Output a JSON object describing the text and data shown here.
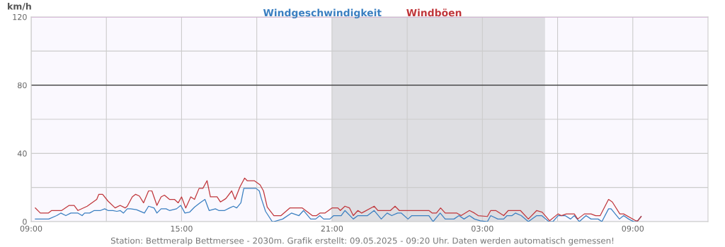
{
  "chart_data": {
    "type": "line",
    "ylabel": "km/h",
    "xlim": [
      "2025-05-08T09:00",
      "2025-05-09T12:00"
    ],
    "xticks": [
      {
        "value": "2025-05-08T09:00",
        "label": "09:00"
      },
      {
        "value": "2025-05-08T12:00",
        "label": null
      },
      {
        "value": "2025-05-08T15:00",
        "label": "15:00"
      },
      {
        "value": "2025-05-08T18:00",
        "label": null
      },
      {
        "value": "2025-05-08T21:00",
        "label": "21:00"
      },
      {
        "value": "2025-05-09T00:00",
        "label": null
      },
      {
        "value": "2025-05-09T03:00",
        "label": "03:00"
      },
      {
        "value": "2025-05-09T06:00",
        "label": null
      },
      {
        "value": "2025-05-09T09:00",
        "label": "09:00"
      }
    ],
    "ylim": [
      0,
      120
    ],
    "yticks": [
      0,
      {
        "value": 20,
        "label": null
      },
      40,
      {
        "value": 60,
        "label": null
      },
      80,
      {
        "value": 100,
        "label": null
      },
      120
    ],
    "grid": true,
    "legend": "top",
    "marker": "none",
    "line_style": "solid",
    "ref_lines": [
      {
        "axis": "y",
        "value": 80,
        "label": null,
        "color": "#333333"
      },
      {
        "axis": "y",
        "value": 120,
        "label": null,
        "color": "#e070e0"
      }
    ],
    "bands": [
      {
        "axis": "x",
        "from": "2025-05-08T21:00",
        "to": "2025-05-09T05:30",
        "label": null,
        "color": "#dedee2"
      }
    ],
    "series": [
      {
        "name": "Windgeschwindigkeit",
        "color": "#3a7fc1",
        "x": [
          "2025-05-08T09:10",
          "2025-05-08T09:42",
          "2025-05-08T10:01",
          "2025-05-08T10:11",
          "2025-05-08T10:23",
          "2025-05-08T10:35",
          "2025-05-08T10:52",
          "2025-05-08T11:02",
          "2025-05-08T11:08",
          "2025-05-08T11:20",
          "2025-05-08T11:31",
          "2025-05-08T11:46",
          "2025-05-08T11:56",
          "2025-05-08T12:04",
          "2025-05-08T12:16",
          "2025-05-08T12:25",
          "2025-05-08T12:33",
          "2025-05-08T12:41",
          "2025-05-08T12:50",
          "2025-05-08T12:58",
          "2025-05-08T13:12",
          "2025-05-08T13:31",
          "2025-05-08T13:41",
          "2025-05-08T13:54",
          "2025-05-08T14:01",
          "2025-05-08T14:11",
          "2025-05-08T14:23",
          "2025-05-08T14:31",
          "2025-05-08T14:48",
          "2025-05-08T14:58",
          "2025-05-08T15:08",
          "2025-05-08T15:19",
          "2025-05-08T15:31",
          "2025-05-08T15:44",
          "2025-05-08T15:56",
          "2025-05-08T16:06",
          "2025-05-08T16:21",
          "2025-05-08T16:29",
          "2025-05-08T16:43",
          "2025-05-08T16:55",
          "2025-05-08T17:04",
          "2025-05-08T17:12",
          "2025-05-08T17:22",
          "2025-05-08T17:29",
          "2025-05-08T17:58",
          "2025-05-08T18:06",
          "2025-05-08T18:11",
          "2025-05-08T18:21",
          "2025-05-08T18:37",
          "2025-05-08T18:41",
          "2025-05-08T19:02",
          "2025-05-08T19:23",
          "2025-05-08T19:41",
          "2025-05-08T19:52",
          "2025-05-08T20:09",
          "2025-05-08T20:21",
          "2025-05-08T20:31",
          "2025-05-08T20:40",
          "2025-05-08T20:55",
          "2025-05-08T21:04",
          "2025-05-08T21:22",
          "2025-05-08T21:31",
          "2025-05-08T21:51",
          "2025-05-08T22:02",
          "2025-05-08T22:25",
          "2025-05-08T22:41",
          "2025-05-08T22:58",
          "2025-05-08T23:12",
          "2025-05-08T23:23",
          "2025-05-08T23:37",
          "2025-05-08T23:46",
          "2025-05-09T00:02",
          "2025-05-09T00:11",
          "2025-05-09T00:52",
          "2025-05-09T01:02",
          "2025-05-09T01:19",
          "2025-05-09T01:31",
          "2025-05-09T01:52",
          "2025-05-09T02:04",
          "2025-05-09T02:16",
          "2025-05-09T02:29",
          "2025-05-09T02:41",
          "2025-05-09T02:55",
          "2025-05-09T03:12",
          "2025-05-09T03:20",
          "2025-05-09T03:37",
          "2025-05-09T03:51",
          "2025-05-09T03:59",
          "2025-05-09T04:11",
          "2025-05-09T04:19",
          "2025-05-09T04:33",
          "2025-05-09T04:50",
          "2025-05-09T05:10",
          "2025-05-09T05:22",
          "2025-05-09T05:39",
          "2025-05-09T05:49",
          "2025-05-09T06:01",
          "2025-05-09T06:18",
          "2025-05-09T06:31",
          "2025-05-09T06:40",
          "2025-05-09T06:52",
          "2025-05-09T07:08",
          "2025-05-09T07:20",
          "2025-05-09T07:37",
          "2025-05-09T07:46",
          "2025-05-09T08:02",
          "2025-05-09T08:08",
          "2025-05-09T08:28",
          "2025-05-09T08:38",
          "2025-05-09T08:50",
          "2025-05-09T09:02",
          "2025-05-09T09:10",
          "2025-05-09T09:20"
        ],
        "values": [
          1.5,
          1.5,
          3.5,
          5,
          3.5,
          5,
          5,
          3.5,
          5,
          5,
          6.5,
          6.5,
          7.5,
          6.5,
          6.5,
          6,
          6.5,
          5,
          7.5,
          7.5,
          7,
          5,
          9,
          8,
          5,
          7.5,
          7.5,
          6.5,
          7.5,
          9.5,
          5,
          5.5,
          8.5,
          11,
          13,
          6.5,
          7.5,
          6.5,
          6.5,
          8,
          9,
          8,
          11,
          19.5,
          19.5,
          18,
          13.5,
          6,
          0,
          0,
          1.5,
          5,
          3.5,
          6.5,
          1.5,
          1.5,
          3.5,
          1.5,
          1.5,
          3.5,
          3.5,
          6.5,
          1.5,
          3.5,
          3.5,
          6.5,
          1.5,
          5,
          3.5,
          5,
          5,
          1.5,
          3.5,
          3.5,
          0,
          5,
          1.5,
          1.5,
          3.5,
          1.5,
          3.5,
          1.5,
          0.5,
          0,
          3.5,
          1.5,
          1.5,
          3.5,
          3.5,
          5,
          3.5,
          0,
          3.5,
          3.5,
          0,
          0,
          3.5,
          3.5,
          1.5,
          3.5,
          0,
          3.5,
          1.5,
          1.5,
          0,
          7.5,
          7.5,
          1.5,
          3.5,
          1.5,
          0,
          0,
          3
        ]
      },
      {
        "name": "Windböen",
        "color": "#c0363b",
        "x": [
          "2025-05-08T09:10",
          "2025-05-08T09:22",
          "2025-05-08T09:41",
          "2025-05-08T09:49",
          "2025-05-08T10:13",
          "2025-05-08T10:31",
          "2025-05-08T10:43",
          "2025-05-08T10:52",
          "2025-05-08T11:14",
          "2025-05-08T11:37",
          "2025-05-08T11:42",
          "2025-05-08T11:51",
          "2025-05-08T12:04",
          "2025-05-08T12:21",
          "2025-05-08T12:33",
          "2025-05-08T12:45",
          "2025-05-08T12:50",
          "2025-05-08T13:02",
          "2025-05-08T13:10",
          "2025-05-08T13:19",
          "2025-05-08T13:29",
          "2025-05-08T13:41",
          "2025-05-08T13:49",
          "2025-05-08T14:01",
          "2025-05-08T14:11",
          "2025-05-08T14:19",
          "2025-05-08T14:31",
          "2025-05-08T14:43",
          "2025-05-08T14:52",
          "2025-05-08T15:00",
          "2025-05-08T15:10",
          "2025-05-08T15:22",
          "2025-05-08T15:31",
          "2025-05-08T15:42",
          "2025-05-08T15:51",
          "2025-05-08T16:01",
          "2025-05-08T16:09",
          "2025-05-08T16:25",
          "2025-05-08T16:33",
          "2025-05-08T16:46",
          "2025-05-08T17:00",
          "2025-05-08T17:08",
          "2025-05-08T17:20",
          "2025-05-08T17:31",
          "2025-05-08T17:37",
          "2025-05-08T17:54",
          "2025-05-08T18:08",
          "2025-05-08T18:16",
          "2025-05-08T18:25",
          "2025-05-08T18:41",
          "2025-05-08T18:58",
          "2025-05-08T19:19",
          "2025-05-08T19:49",
          "2025-05-08T20:13",
          "2025-05-08T20:23",
          "2025-05-08T20:31",
          "2025-05-08T20:43",
          "2025-05-08T21:00",
          "2025-05-08T21:14",
          "2025-05-08T21:20",
          "2025-05-08T21:31",
          "2025-05-08T21:42",
          "2025-05-08T21:51",
          "2025-05-08T22:02",
          "2025-05-08T22:11",
          "2025-05-08T22:41",
          "2025-05-08T22:50",
          "2025-05-08T23:20",
          "2025-05-08T23:31",
          "2025-05-08T23:41",
          "2025-05-09T00:52",
          "2025-05-09T01:00",
          "2025-05-09T01:10",
          "2025-05-09T01:20",
          "2025-05-09T01:31",
          "2025-05-09T01:59",
          "2025-05-09T02:09",
          "2025-05-09T02:29",
          "2025-05-09T02:41",
          "2025-05-09T02:50",
          "2025-05-09T03:12",
          "2025-05-09T03:20",
          "2025-05-09T03:32",
          "2025-05-09T03:51",
          "2025-05-09T04:02",
          "2025-05-09T04:31",
          "2025-05-09T04:50",
          "2025-05-09T05:10",
          "2025-05-09T05:23",
          "2025-05-09T05:41",
          "2025-05-09T06:01",
          "2025-05-09T06:09",
          "2025-05-09T06:21",
          "2025-05-09T06:40",
          "2025-05-09T06:48",
          "2025-05-09T07:04",
          "2025-05-09T07:20",
          "2025-05-09T07:31",
          "2025-05-09T07:42",
          "2025-05-09T08:02",
          "2025-05-09T08:11",
          "2025-05-09T08:29",
          "2025-05-09T08:38",
          "2025-05-09T09:07",
          "2025-05-09T09:12",
          "2025-05-09T09:20"
        ],
        "values": [
          8,
          5,
          5,
          6.5,
          6.5,
          9.5,
          9.5,
          6.5,
          9,
          13,
          16,
          16,
          12,
          8,
          9.5,
          8,
          9,
          14.5,
          16,
          15,
          11,
          18,
          18,
          9.5,
          14.5,
          15.5,
          13,
          13,
          11,
          14.5,
          8,
          14.5,
          13,
          19.5,
          19.5,
          24,
          14.5,
          14.5,
          11.5,
          13.5,
          18,
          13,
          20.5,
          25.5,
          24,
          24,
          21.5,
          18,
          8.5,
          3.5,
          3.5,
          8,
          8,
          3.5,
          3.5,
          5,
          5,
          8,
          8,
          6.5,
          9,
          8,
          3.5,
          6.5,
          5,
          9,
          6.5,
          6.5,
          9,
          6.5,
          6.5,
          5,
          5,
          8,
          5,
          5,
          3.5,
          6.5,
          5,
          3.5,
          3,
          6.5,
          6.5,
          3.5,
          6.5,
          6.5,
          1.5,
          6.5,
          5.5,
          0.5,
          4.5,
          3.5,
          4.5,
          4.5,
          1.5,
          4.5,
          4.5,
          3.5,
          3.5,
          13,
          11.5,
          4.5,
          4.5,
          0.5,
          0.5,
          3
        ]
      }
    ],
    "annotations": [
      "Station: Bettmeralp Bettmersee - 2030m. Grafik erstellt: 09.05.2025 - 09:20 Uhr. Daten werden automatisch gemessen!"
    ]
  }
}
